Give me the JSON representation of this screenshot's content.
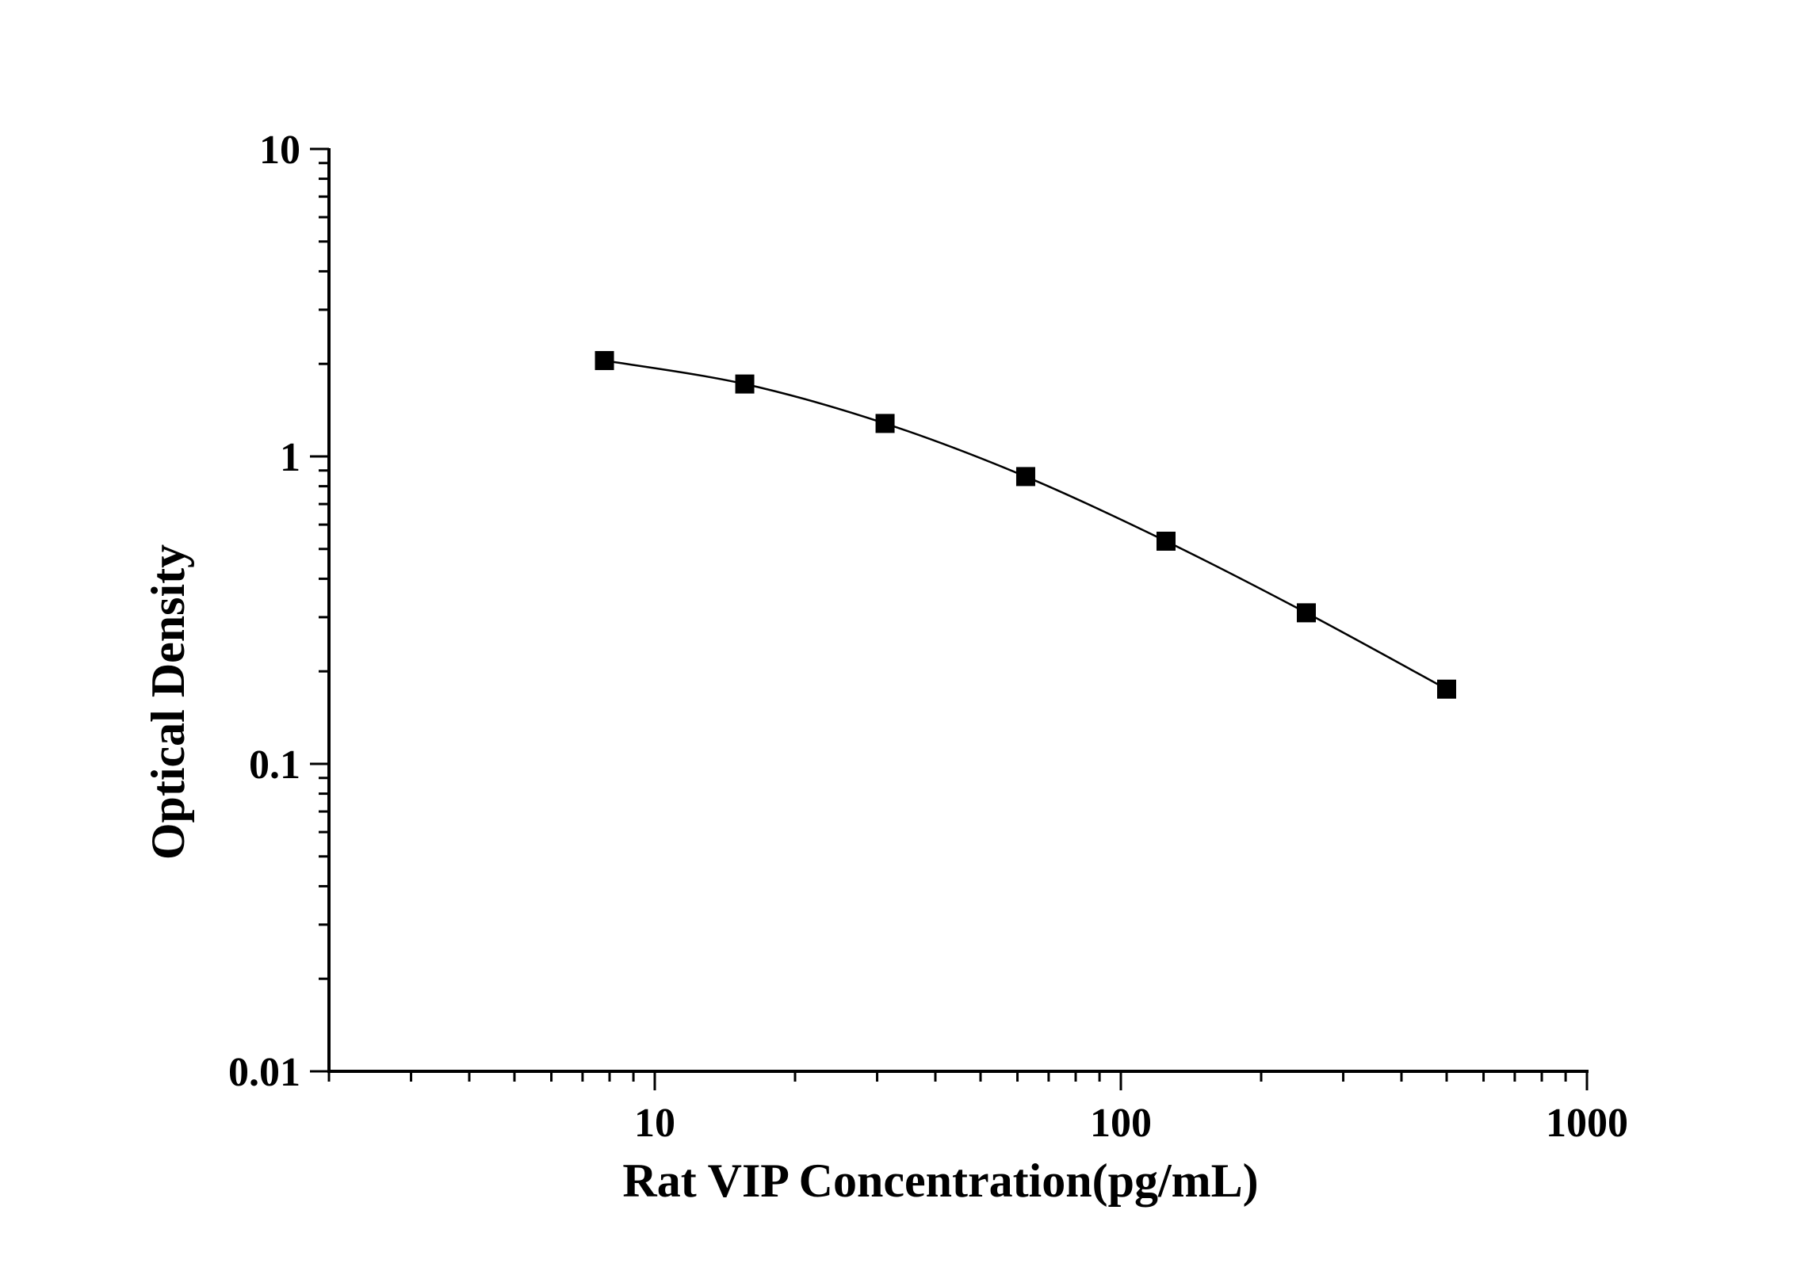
{
  "chart_data": {
    "type": "scatter",
    "xlabel": "Rat VIP Concentration(pg/mL)",
    "ylabel": "Optical Density",
    "xscale": "log",
    "yscale": "log",
    "xlim": [
      2,
      1000
    ],
    "ylim": [
      0.01,
      10
    ],
    "x_ticks": [
      10,
      100,
      1000
    ],
    "x_tick_labels": [
      "10",
      "100",
      "1000"
    ],
    "y_ticks": [
      0.01,
      0.1,
      1,
      10
    ],
    "y_tick_labels": [
      "0.01",
      "0.1",
      "1",
      "10"
    ],
    "grid": false,
    "legend": "none",
    "marker": "square",
    "line": "smooth",
    "color": "#000000",
    "series": [
      {
        "x": [
          7.8,
          15.6,
          31.2,
          62.5,
          125,
          250,
          500
        ],
        "y": [
          2.05,
          1.72,
          1.28,
          0.86,
          0.53,
          0.31,
          0.175
        ]
      }
    ]
  }
}
